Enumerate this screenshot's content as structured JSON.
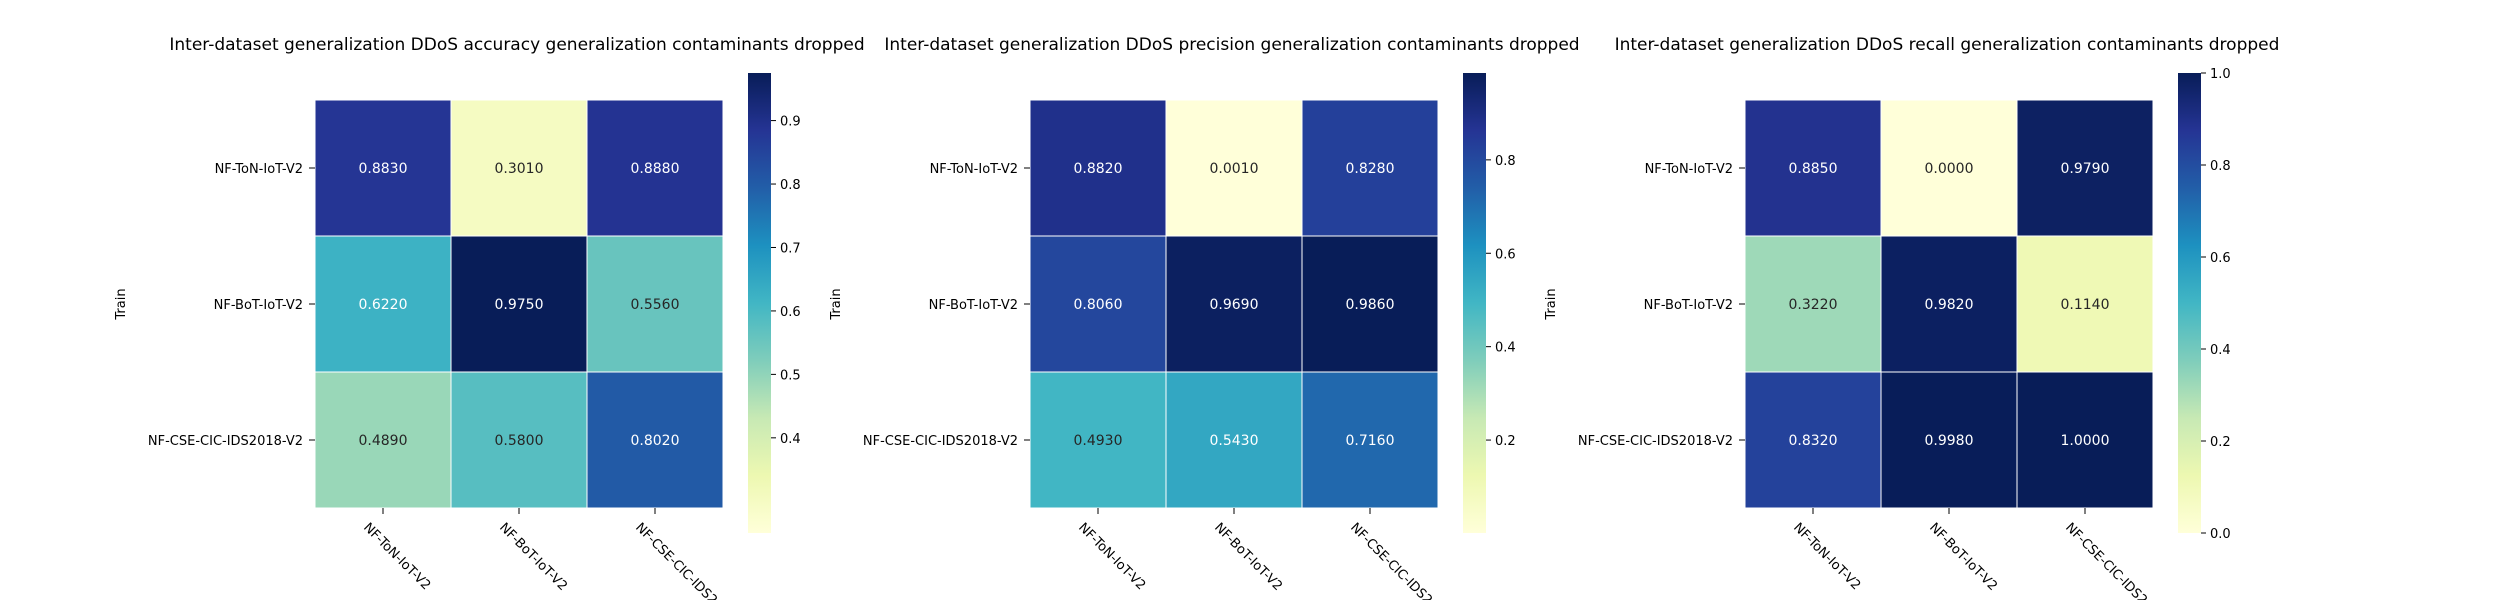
{
  "chart_data": [
    {
      "type": "heatmap",
      "title": "Inter-dataset generalization DDoS accuracy generalization contaminants dropped",
      "ylabel": "Train",
      "row_labels": [
        "NF-ToN-IoT-V2",
        "NF-BoT-IoT-V2",
        "NF-CSE-CIC-IDS2018-V2"
      ],
      "col_labels": [
        "NF-ToN-IoT-V2",
        "NF-BoT-IoT-V2",
        "NF-CSE-CIC-IDS2"
      ],
      "values": [
        [
          0.883,
          0.301,
          0.888
        ],
        [
          0.622,
          0.975,
          0.556
        ],
        [
          0.489,
          0.58,
          0.802
        ]
      ],
      "value_labels": [
        [
          "0.8830",
          "0.3010",
          "0.8880"
        ],
        [
          "0.6220",
          "0.9750",
          "0.5560"
        ],
        [
          "0.4890",
          "0.5800",
          "0.8020"
        ]
      ],
      "colorbar": {
        "min": 0.25,
        "max": 0.975,
        "ticks": [
          "0.4",
          "0.5",
          "0.6",
          "0.7",
          "0.8",
          "0.9"
        ],
        "tick_values": [
          0.4,
          0.5,
          0.6,
          0.7,
          0.8,
          0.9
        ]
      },
      "colormap": "YlGnBu"
    },
    {
      "type": "heatmap",
      "title": "Inter-dataset generalization DDoS precision generalization contaminants dropped",
      "ylabel": "Train",
      "row_labels": [
        "NF-ToN-IoT-V2",
        "NF-BoT-IoT-V2",
        "NF-CSE-CIC-IDS2018-V2"
      ],
      "col_labels": [
        "NF-ToN-IoT-V2",
        "NF-BoT-IoT-V2",
        "NF-CSE-CIC-IDS2"
      ],
      "values": [
        [
          0.882,
          0.001,
          0.828
        ],
        [
          0.806,
          0.969,
          0.986
        ],
        [
          0.493,
          0.543,
          0.716
        ]
      ],
      "value_labels": [
        [
          "0.8820",
          "0.0010",
          "0.8280"
        ],
        [
          "0.8060",
          "0.9690",
          "0.9860"
        ],
        [
          "0.4930",
          "0.5430",
          "0.7160"
        ]
      ],
      "colorbar": {
        "min": 0.001,
        "max": 0.986,
        "ticks": [
          "0.2",
          "0.4",
          "0.6",
          "0.8"
        ],
        "tick_values": [
          0.2,
          0.4,
          0.6,
          0.8
        ]
      },
      "colormap": "YlGnBu"
    },
    {
      "type": "heatmap",
      "title": "Inter-dataset generalization DDoS recall generalization contaminants dropped",
      "ylabel": "Train",
      "row_labels": [
        "NF-ToN-IoT-V2",
        "NF-BoT-IoT-V2",
        "NF-CSE-CIC-IDS2018-V2"
      ],
      "col_labels": [
        "NF-ToN-IoT-V2",
        "NF-BoT-IoT-V2",
        "NF-CSE-CIC-IDS2"
      ],
      "values": [
        [
          0.885,
          0.0,
          0.979
        ],
        [
          0.322,
          0.982,
          0.114
        ],
        [
          0.832,
          0.998,
          1.0
        ]
      ],
      "value_labels": [
        [
          "0.8850",
          "0.0000",
          "0.9790"
        ],
        [
          "0.3220",
          "0.9820",
          "0.1140"
        ],
        [
          "0.8320",
          "0.9980",
          "1.0000"
        ]
      ],
      "colorbar": {
        "min": 0.0,
        "max": 1.0,
        "ticks": [
          "0.0",
          "0.2",
          "0.4",
          "0.6",
          "0.8",
          "1.0"
        ],
        "tick_values": [
          0.0,
          0.2,
          0.4,
          0.6,
          0.8,
          1.0
        ]
      },
      "colormap": "YlGnBu"
    }
  ]
}
